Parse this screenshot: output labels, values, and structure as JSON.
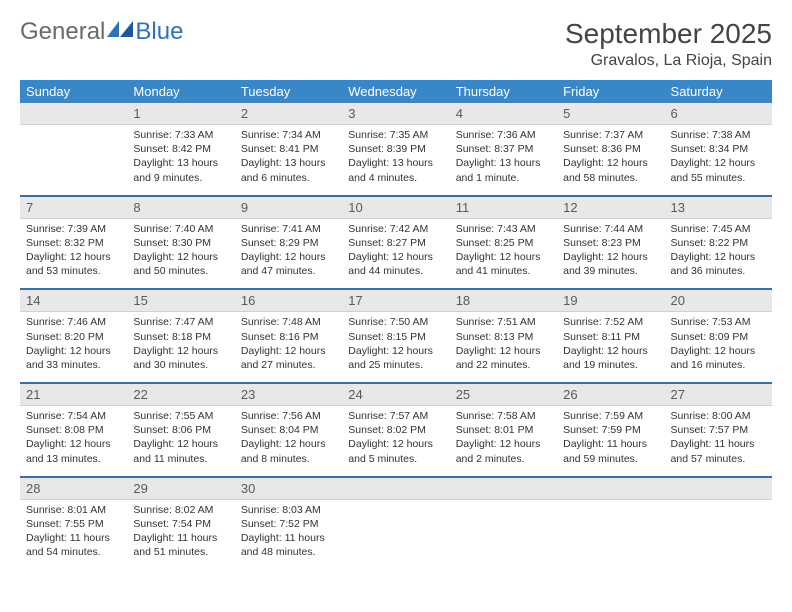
{
  "brand": {
    "part1": "General",
    "part2": "Blue"
  },
  "title": "September 2025",
  "location": "Gravalos, La Rioja, Spain",
  "colors": {
    "header_bg": "#3a87c8",
    "header_text": "#ffffff",
    "daynum_bg": "#e8e8e8",
    "daynum_text": "#5a5a5a",
    "row_divider": "#3a6ea5",
    "logo_gray": "#6a6a6a",
    "logo_blue": "#2e73b8"
  },
  "weekdays": [
    "Sunday",
    "Monday",
    "Tuesday",
    "Wednesday",
    "Thursday",
    "Friday",
    "Saturday"
  ],
  "weeks": [
    {
      "nums": [
        "",
        "1",
        "2",
        "3",
        "4",
        "5",
        "6"
      ],
      "cells": [
        {
          "sunrise": "",
          "sunset": "",
          "daylight": ""
        },
        {
          "sunrise": "Sunrise: 7:33 AM",
          "sunset": "Sunset: 8:42 PM",
          "daylight": "Daylight: 13 hours and 9 minutes."
        },
        {
          "sunrise": "Sunrise: 7:34 AM",
          "sunset": "Sunset: 8:41 PM",
          "daylight": "Daylight: 13 hours and 6 minutes."
        },
        {
          "sunrise": "Sunrise: 7:35 AM",
          "sunset": "Sunset: 8:39 PM",
          "daylight": "Daylight: 13 hours and 4 minutes."
        },
        {
          "sunrise": "Sunrise: 7:36 AM",
          "sunset": "Sunset: 8:37 PM",
          "daylight": "Daylight: 13 hours and 1 minute."
        },
        {
          "sunrise": "Sunrise: 7:37 AM",
          "sunset": "Sunset: 8:36 PM",
          "daylight": "Daylight: 12 hours and 58 minutes."
        },
        {
          "sunrise": "Sunrise: 7:38 AM",
          "sunset": "Sunset: 8:34 PM",
          "daylight": "Daylight: 12 hours and 55 minutes."
        }
      ]
    },
    {
      "nums": [
        "7",
        "8",
        "9",
        "10",
        "11",
        "12",
        "13"
      ],
      "cells": [
        {
          "sunrise": "Sunrise: 7:39 AM",
          "sunset": "Sunset: 8:32 PM",
          "daylight": "Daylight: 12 hours and 53 minutes."
        },
        {
          "sunrise": "Sunrise: 7:40 AM",
          "sunset": "Sunset: 8:30 PM",
          "daylight": "Daylight: 12 hours and 50 minutes."
        },
        {
          "sunrise": "Sunrise: 7:41 AM",
          "sunset": "Sunset: 8:29 PM",
          "daylight": "Daylight: 12 hours and 47 minutes."
        },
        {
          "sunrise": "Sunrise: 7:42 AM",
          "sunset": "Sunset: 8:27 PM",
          "daylight": "Daylight: 12 hours and 44 minutes."
        },
        {
          "sunrise": "Sunrise: 7:43 AM",
          "sunset": "Sunset: 8:25 PM",
          "daylight": "Daylight: 12 hours and 41 minutes."
        },
        {
          "sunrise": "Sunrise: 7:44 AM",
          "sunset": "Sunset: 8:23 PM",
          "daylight": "Daylight: 12 hours and 39 minutes."
        },
        {
          "sunrise": "Sunrise: 7:45 AM",
          "sunset": "Sunset: 8:22 PM",
          "daylight": "Daylight: 12 hours and 36 minutes."
        }
      ]
    },
    {
      "nums": [
        "14",
        "15",
        "16",
        "17",
        "18",
        "19",
        "20"
      ],
      "cells": [
        {
          "sunrise": "Sunrise: 7:46 AM",
          "sunset": "Sunset: 8:20 PM",
          "daylight": "Daylight: 12 hours and 33 minutes."
        },
        {
          "sunrise": "Sunrise: 7:47 AM",
          "sunset": "Sunset: 8:18 PM",
          "daylight": "Daylight: 12 hours and 30 minutes."
        },
        {
          "sunrise": "Sunrise: 7:48 AM",
          "sunset": "Sunset: 8:16 PM",
          "daylight": "Daylight: 12 hours and 27 minutes."
        },
        {
          "sunrise": "Sunrise: 7:50 AM",
          "sunset": "Sunset: 8:15 PM",
          "daylight": "Daylight: 12 hours and 25 minutes."
        },
        {
          "sunrise": "Sunrise: 7:51 AM",
          "sunset": "Sunset: 8:13 PM",
          "daylight": "Daylight: 12 hours and 22 minutes."
        },
        {
          "sunrise": "Sunrise: 7:52 AM",
          "sunset": "Sunset: 8:11 PM",
          "daylight": "Daylight: 12 hours and 19 minutes."
        },
        {
          "sunrise": "Sunrise: 7:53 AM",
          "sunset": "Sunset: 8:09 PM",
          "daylight": "Daylight: 12 hours and 16 minutes."
        }
      ]
    },
    {
      "nums": [
        "21",
        "22",
        "23",
        "24",
        "25",
        "26",
        "27"
      ],
      "cells": [
        {
          "sunrise": "Sunrise: 7:54 AM",
          "sunset": "Sunset: 8:08 PM",
          "daylight": "Daylight: 12 hours and 13 minutes."
        },
        {
          "sunrise": "Sunrise: 7:55 AM",
          "sunset": "Sunset: 8:06 PM",
          "daylight": "Daylight: 12 hours and 11 minutes."
        },
        {
          "sunrise": "Sunrise: 7:56 AM",
          "sunset": "Sunset: 8:04 PM",
          "daylight": "Daylight: 12 hours and 8 minutes."
        },
        {
          "sunrise": "Sunrise: 7:57 AM",
          "sunset": "Sunset: 8:02 PM",
          "daylight": "Daylight: 12 hours and 5 minutes."
        },
        {
          "sunrise": "Sunrise: 7:58 AM",
          "sunset": "Sunset: 8:01 PM",
          "daylight": "Daylight: 12 hours and 2 minutes."
        },
        {
          "sunrise": "Sunrise: 7:59 AM",
          "sunset": "Sunset: 7:59 PM",
          "daylight": "Daylight: 11 hours and 59 minutes."
        },
        {
          "sunrise": "Sunrise: 8:00 AM",
          "sunset": "Sunset: 7:57 PM",
          "daylight": "Daylight: 11 hours and 57 minutes."
        }
      ]
    },
    {
      "nums": [
        "28",
        "29",
        "30",
        "",
        "",
        "",
        ""
      ],
      "cells": [
        {
          "sunrise": "Sunrise: 8:01 AM",
          "sunset": "Sunset: 7:55 PM",
          "daylight": "Daylight: 11 hours and 54 minutes."
        },
        {
          "sunrise": "Sunrise: 8:02 AM",
          "sunset": "Sunset: 7:54 PM",
          "daylight": "Daylight: 11 hours and 51 minutes."
        },
        {
          "sunrise": "Sunrise: 8:03 AM",
          "sunset": "Sunset: 7:52 PM",
          "daylight": "Daylight: 11 hours and 48 minutes."
        },
        {
          "sunrise": "",
          "sunset": "",
          "daylight": ""
        },
        {
          "sunrise": "",
          "sunset": "",
          "daylight": ""
        },
        {
          "sunrise": "",
          "sunset": "",
          "daylight": ""
        },
        {
          "sunrise": "",
          "sunset": "",
          "daylight": ""
        }
      ]
    }
  ]
}
